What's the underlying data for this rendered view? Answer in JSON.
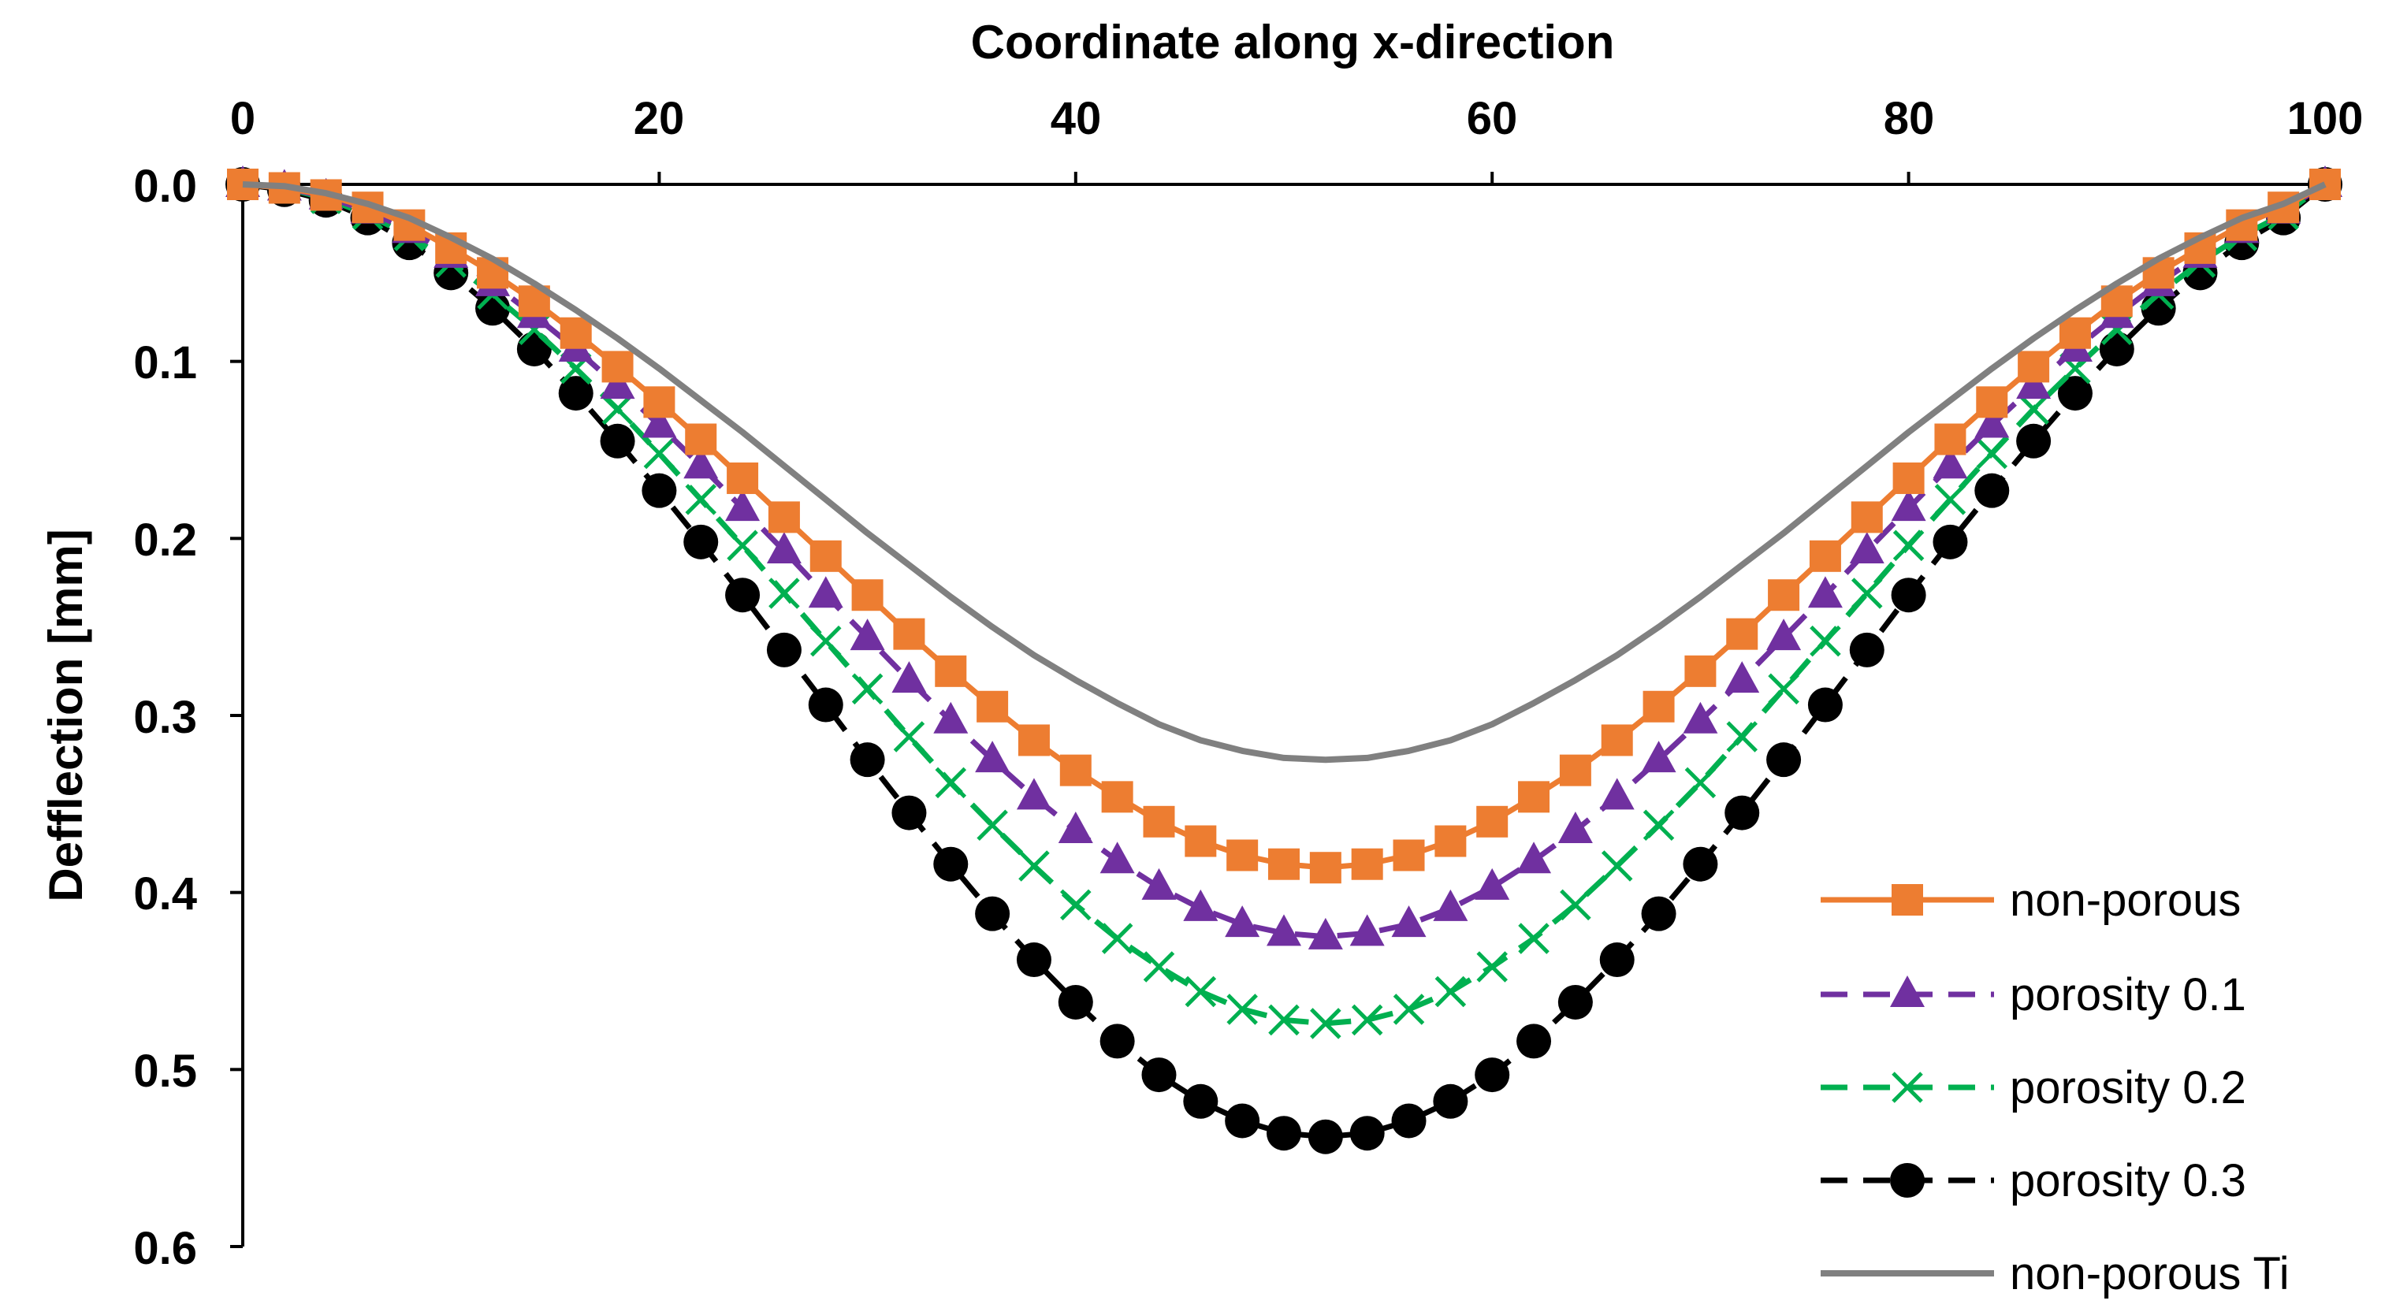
{
  "chart_data": {
    "type": "line",
    "title": "",
    "xlabel": "Coordinate along x-direction",
    "ylabel": "Defflection [mm]",
    "xlim": [
      0,
      100
    ],
    "ylim": [
      0,
      0.6
    ],
    "y_axis_inverted": true,
    "x_axis_position": "top",
    "grid": false,
    "legend_position": "bottom-right",
    "x_ticks": [
      "0",
      "20",
      "40",
      "60",
      "80",
      "100"
    ],
    "y_ticks": [
      "0.0",
      "0.1",
      "0.2",
      "0.3",
      "0.4",
      "0.5",
      "0.6"
    ],
    "colors": {
      "non_porous": "#ED7D31",
      "porosity_01": "#7030A0",
      "porosity_02": "#00B050",
      "porosity_03": "#000000",
      "non_porous_ti": "#808080"
    },
    "series": [
      {
        "name": "non-porous",
        "style": "solid",
        "marker": "square",
        "color": "#ED7D31",
        "x": [
          0,
          2,
          4,
          6,
          8,
          10,
          12,
          14,
          16,
          18,
          20,
          22,
          24,
          26,
          28,
          30,
          32,
          34,
          36,
          38,
          40,
          42,
          44,
          46,
          48,
          50,
          52,
          54,
          56,
          58,
          60,
          62,
          64,
          66,
          68,
          70,
          72,
          74,
          76,
          78,
          80,
          82,
          84,
          86,
          88,
          90,
          92,
          94,
          96,
          98,
          100
        ],
        "y": [
          0.0,
          0.002,
          0.006,
          0.013,
          0.023,
          0.036,
          0.05,
          0.066,
          0.084,
          0.103,
          0.123,
          0.144,
          0.166,
          0.188,
          0.21,
          0.232,
          0.254,
          0.275,
          0.295,
          0.314,
          0.331,
          0.346,
          0.36,
          0.371,
          0.379,
          0.384,
          0.386,
          0.384,
          0.379,
          0.371,
          0.36,
          0.346,
          0.331,
          0.314,
          0.295,
          0.275,
          0.254,
          0.232,
          0.21,
          0.188,
          0.166,
          0.144,
          0.123,
          0.103,
          0.084,
          0.066,
          0.05,
          0.036,
          0.023,
          0.013,
          0.0
        ]
      },
      {
        "name": "porosity 0.1",
        "style": "dashed",
        "marker": "triangle",
        "color": "#7030A0",
        "x": [
          0,
          2,
          4,
          6,
          8,
          10,
          12,
          14,
          16,
          18,
          20,
          22,
          24,
          26,
          28,
          30,
          32,
          34,
          36,
          38,
          40,
          42,
          44,
          46,
          48,
          50,
          52,
          54,
          56,
          58,
          60,
          62,
          64,
          66,
          68,
          70,
          72,
          74,
          76,
          78,
          80,
          82,
          84,
          86,
          88,
          90,
          92,
          94,
          96,
          98,
          100
        ],
        "y": [
          0.0,
          0.002,
          0.007,
          0.015,
          0.026,
          0.04,
          0.056,
          0.074,
          0.093,
          0.114,
          0.136,
          0.159,
          0.183,
          0.207,
          0.232,
          0.256,
          0.28,
          0.303,
          0.325,
          0.346,
          0.365,
          0.382,
          0.397,
          0.409,
          0.418,
          0.423,
          0.425,
          0.423,
          0.418,
          0.409,
          0.397,
          0.382,
          0.365,
          0.346,
          0.325,
          0.303,
          0.28,
          0.256,
          0.232,
          0.207,
          0.183,
          0.159,
          0.136,
          0.114,
          0.093,
          0.074,
          0.056,
          0.04,
          0.026,
          0.015,
          0.0
        ]
      },
      {
        "name": "porosity 0.2",
        "style": "dashed",
        "marker": "x",
        "color": "#00B050",
        "x": [
          0,
          2,
          4,
          6,
          8,
          10,
          12,
          14,
          16,
          18,
          20,
          22,
          24,
          26,
          28,
          30,
          32,
          34,
          36,
          38,
          40,
          42,
          44,
          46,
          48,
          50,
          52,
          54,
          56,
          58,
          60,
          62,
          64,
          66,
          68,
          70,
          72,
          74,
          76,
          78,
          80,
          82,
          84,
          86,
          88,
          90,
          92,
          94,
          96,
          98,
          100
        ],
        "y": [
          0.0,
          0.002,
          0.008,
          0.017,
          0.029,
          0.044,
          0.062,
          0.082,
          0.104,
          0.127,
          0.152,
          0.178,
          0.204,
          0.231,
          0.258,
          0.285,
          0.312,
          0.338,
          0.362,
          0.385,
          0.407,
          0.426,
          0.442,
          0.456,
          0.466,
          0.472,
          0.474,
          0.472,
          0.466,
          0.456,
          0.442,
          0.426,
          0.407,
          0.385,
          0.362,
          0.338,
          0.312,
          0.285,
          0.258,
          0.231,
          0.204,
          0.178,
          0.152,
          0.127,
          0.104,
          0.082,
          0.062,
          0.044,
          0.029,
          0.017,
          0.0
        ]
      },
      {
        "name": "porosity 0.3",
        "style": "dashed",
        "marker": "circle",
        "color": "#000000",
        "x": [
          0,
          2,
          4,
          6,
          8,
          10,
          12,
          14,
          16,
          18,
          20,
          22,
          24,
          26,
          28,
          30,
          32,
          34,
          36,
          38,
          40,
          42,
          44,
          46,
          48,
          50,
          52,
          54,
          56,
          58,
          60,
          62,
          64,
          66,
          68,
          70,
          72,
          74,
          76,
          78,
          80,
          82,
          84,
          86,
          88,
          90,
          92,
          94,
          96,
          98,
          100
        ],
        "y": [
          0.0,
          0.003,
          0.009,
          0.019,
          0.033,
          0.05,
          0.07,
          0.093,
          0.118,
          0.145,
          0.173,
          0.202,
          0.232,
          0.263,
          0.294,
          0.325,
          0.355,
          0.384,
          0.412,
          0.438,
          0.462,
          0.484,
          0.503,
          0.518,
          0.529,
          0.536,
          0.538,
          0.536,
          0.529,
          0.518,
          0.503,
          0.484,
          0.462,
          0.438,
          0.412,
          0.384,
          0.355,
          0.325,
          0.294,
          0.263,
          0.232,
          0.202,
          0.173,
          0.145,
          0.118,
          0.093,
          0.07,
          0.05,
          0.033,
          0.019,
          0.0
        ]
      },
      {
        "name": "non-porous Ti",
        "style": "solid",
        "marker": "none",
        "color": "#808080",
        "x": [
          0,
          2,
          4,
          6,
          8,
          10,
          12,
          14,
          16,
          18,
          20,
          22,
          24,
          26,
          28,
          30,
          32,
          34,
          36,
          38,
          40,
          42,
          44,
          46,
          48,
          50,
          52,
          54,
          56,
          58,
          60,
          62,
          64,
          66,
          68,
          70,
          72,
          74,
          76,
          78,
          80,
          82,
          84,
          86,
          88,
          90,
          92,
          94,
          96,
          98,
          100
        ],
        "y": [
          0.0,
          0.001,
          0.005,
          0.011,
          0.019,
          0.03,
          0.042,
          0.056,
          0.071,
          0.087,
          0.104,
          0.122,
          0.14,
          0.159,
          0.178,
          0.197,
          0.215,
          0.233,
          0.25,
          0.266,
          0.28,
          0.293,
          0.305,
          0.314,
          0.32,
          0.324,
          0.325,
          0.324,
          0.32,
          0.314,
          0.305,
          0.293,
          0.28,
          0.266,
          0.25,
          0.233,
          0.215,
          0.197,
          0.178,
          0.159,
          0.14,
          0.122,
          0.104,
          0.087,
          0.071,
          0.056,
          0.042,
          0.03,
          0.019,
          0.011,
          0.0
        ]
      }
    ]
  }
}
